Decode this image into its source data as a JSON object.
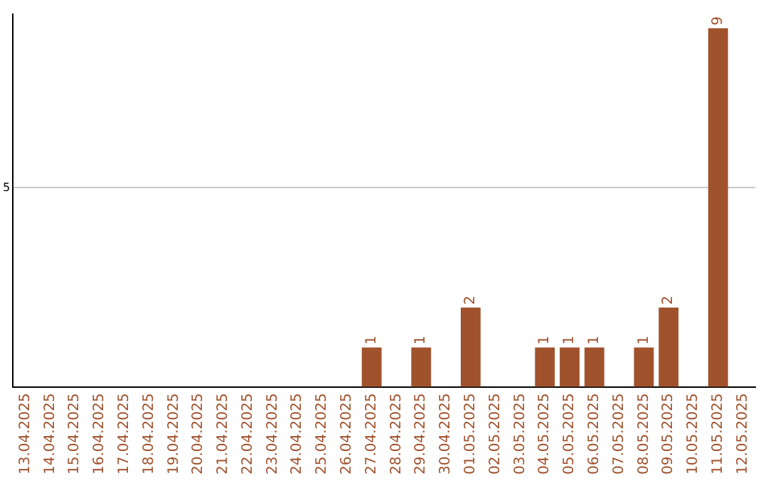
{
  "chart_data": {
    "type": "bar",
    "categories": [
      "13.04.2025",
      "14.04.2025",
      "15.04.2025",
      "16.04.2025",
      "17.04.2025",
      "18.04.2025",
      "19.04.2025",
      "20.04.2025",
      "21.04.2025",
      "22.04.2025",
      "23.04.2025",
      "24.04.2025",
      "25.04.2025",
      "26.04.2025",
      "27.04.2025",
      "28.04.2025",
      "29.04.2025",
      "30.04.2025",
      "01.05.2025",
      "02.05.2025",
      "03.05.2025",
      "04.05.2025",
      "05.05.2025",
      "06.05.2025",
      "07.05.2025",
      "08.05.2025",
      "09.05.2025",
      "10.05.2025",
      "11.05.2025",
      "12.05.2025"
    ],
    "values": [
      null,
      null,
      null,
      null,
      null,
      null,
      null,
      null,
      null,
      null,
      null,
      null,
      null,
      null,
      1,
      null,
      1,
      null,
      2,
      null,
      null,
      1,
      1,
      1,
      null,
      1,
      2,
      null,
      9,
      null
    ],
    "data_labels": true,
    "color": "#a0522d",
    "ylim": [
      0,
      9.35
    ],
    "yticks": [
      {
        "value": 0,
        "label": null
      },
      5
    ],
    "grid": "y"
  }
}
